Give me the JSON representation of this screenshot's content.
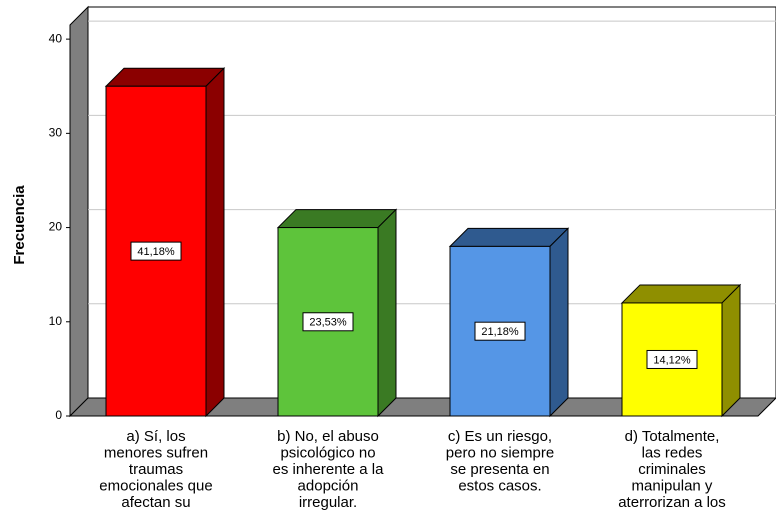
{
  "chart_data": {
    "type": "bar3d",
    "y_label": "Frecuencia",
    "categories": [
      [
        "a) Sí, los",
        "menores sufren",
        "traumas",
        "emocionales que",
        "afectan su"
      ],
      [
        "b) No, el abuso",
        "psicológico no",
        "es inherente a la",
        "adopción",
        "irregular."
      ],
      [
        "c) Es un riesgo,",
        "pero no siempre",
        "se presenta en",
        "estos casos."
      ],
      [
        "d) Totalmente,",
        "las redes",
        "criminales",
        "manipulan y",
        "aterrorizan a los"
      ]
    ],
    "values": [
      35,
      20,
      18,
      12
    ],
    "data_labels": [
      "41,18%",
      "23,53%",
      "21,18%",
      "14,12%"
    ],
    "colors": [
      "#ff0000",
      "#5ec43b",
      "#5596e6",
      "#ffff00"
    ],
    "side_colors": [
      "#8b0000",
      "#3a7a23",
      "#2f5a8f",
      "#8f8f00"
    ],
    "ylim": [
      0,
      41.5
    ],
    "yticks": [
      0,
      10,
      20,
      30,
      40
    ],
    "grid": true
  }
}
